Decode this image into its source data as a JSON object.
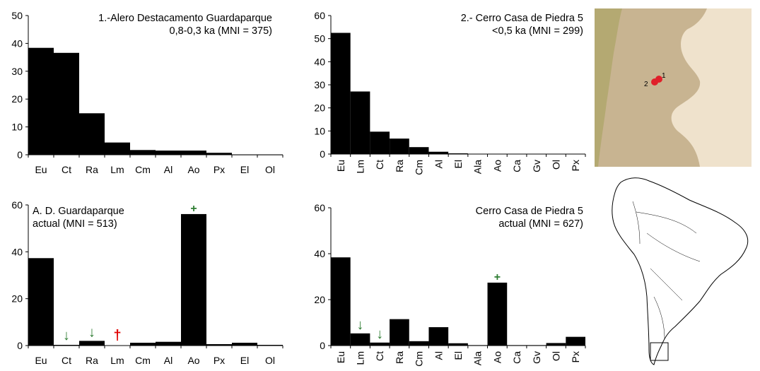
{
  "chart_data": [
    {
      "id": "p1",
      "type": "bar",
      "title_lines": [
        "1.-Alero Destacamento Guardaparque",
        "0,8-0,3 ka (MNI = 375)"
      ],
      "categories": [
        "Eu",
        "Ct",
        "Ra",
        "Lm",
        "Cm",
        "Al",
        "Ao",
        "Px",
        "El",
        "Ol"
      ],
      "values": [
        38.4,
        36.6,
        14.9,
        4.4,
        1.7,
        1.5,
        1.5,
        0.7,
        0.1,
        0.1
      ],
      "ylim": [
        0,
        50
      ],
      "yticks": [
        0,
        10,
        20,
        30,
        40,
        50
      ],
      "tick_labels_rotated": false,
      "markers": []
    },
    {
      "id": "p2",
      "type": "bar",
      "title_lines": [
        "2.- Cerro Casa de Piedra 5",
        "<0,5 ka (MNI = 299)"
      ],
      "categories": [
        "Eu",
        "Lm",
        "Ct",
        "Ra",
        "Cm",
        "Al",
        "El",
        "Ala",
        "Ao",
        "Ca",
        "Gv",
        "Ol",
        "Px"
      ],
      "values": [
        52.5,
        27.1,
        9.7,
        6.7,
        3.0,
        1.0,
        0.3,
        0,
        0,
        0,
        0,
        0,
        0
      ],
      "ylim": [
        0,
        60
      ],
      "yticks": [
        0,
        10,
        20,
        30,
        40,
        50,
        60
      ],
      "tick_labels_rotated": true,
      "markers": []
    },
    {
      "id": "p3",
      "type": "bar",
      "title_lines": [
        "A. D. Guardaparque",
        "actual (MNI = 513)"
      ],
      "categories": [
        "Eu",
        "Ct",
        "Ra",
        "Lm",
        "Cm",
        "Al",
        "Ao",
        "Px",
        "El",
        "Ol"
      ],
      "values": [
        37.3,
        0.3,
        2.0,
        0,
        1.2,
        1.6,
        56.1,
        0.6,
        1.2,
        0.3
      ],
      "ylim": [
        0,
        60
      ],
      "yticks": [
        0,
        20,
        40,
        60
      ],
      "tick_labels_rotated": false,
      "markers": [
        {
          "category": "Ct",
          "symbol": "↓",
          "color": "#2e7d32"
        },
        {
          "category": "Ra",
          "symbol": "↓",
          "color": "#2e7d32"
        },
        {
          "category": "Lm",
          "symbol": "†",
          "color": "#e00000"
        },
        {
          "category": "Ao",
          "symbol": "+",
          "color": "#2e7d32"
        }
      ]
    },
    {
      "id": "p4",
      "type": "bar",
      "title_lines": [
        "Cerro Casa de Piedra 5",
        "actual (MNI = 627)"
      ],
      "categories": [
        "Eu",
        "Lm",
        "Ct",
        "Ra",
        "Cm",
        "Al",
        "El",
        "Ala",
        "Ao",
        "Ca",
        "Gv",
        "Ol",
        "Px"
      ],
      "values": [
        38.4,
        5.3,
        1.3,
        11.5,
        1.9,
        8.0,
        1.0,
        0.2,
        27.4,
        0.2,
        0.2,
        1.1,
        3.8
      ],
      "ylim": [
        0,
        60
      ],
      "yticks": [
        0,
        20,
        40,
        60
      ],
      "tick_labels_rotated": true,
      "markers": [
        {
          "category": "Lm",
          "symbol": "↓",
          "color": "#2e7d32"
        },
        {
          "category": "Ct",
          "symbol": "↓",
          "color": "#2e7d32"
        },
        {
          "category": "Ao",
          "symbol": "+",
          "color": "#2e7d32"
        }
      ]
    }
  ],
  "map_regional": {
    "site_labels": [
      "1",
      "2"
    ],
    "site_color": "#e0202a",
    "land_color": "#c8b491",
    "sea_color": "#efe2cc"
  },
  "map_continent": {
    "outline_color": "#000000"
  }
}
